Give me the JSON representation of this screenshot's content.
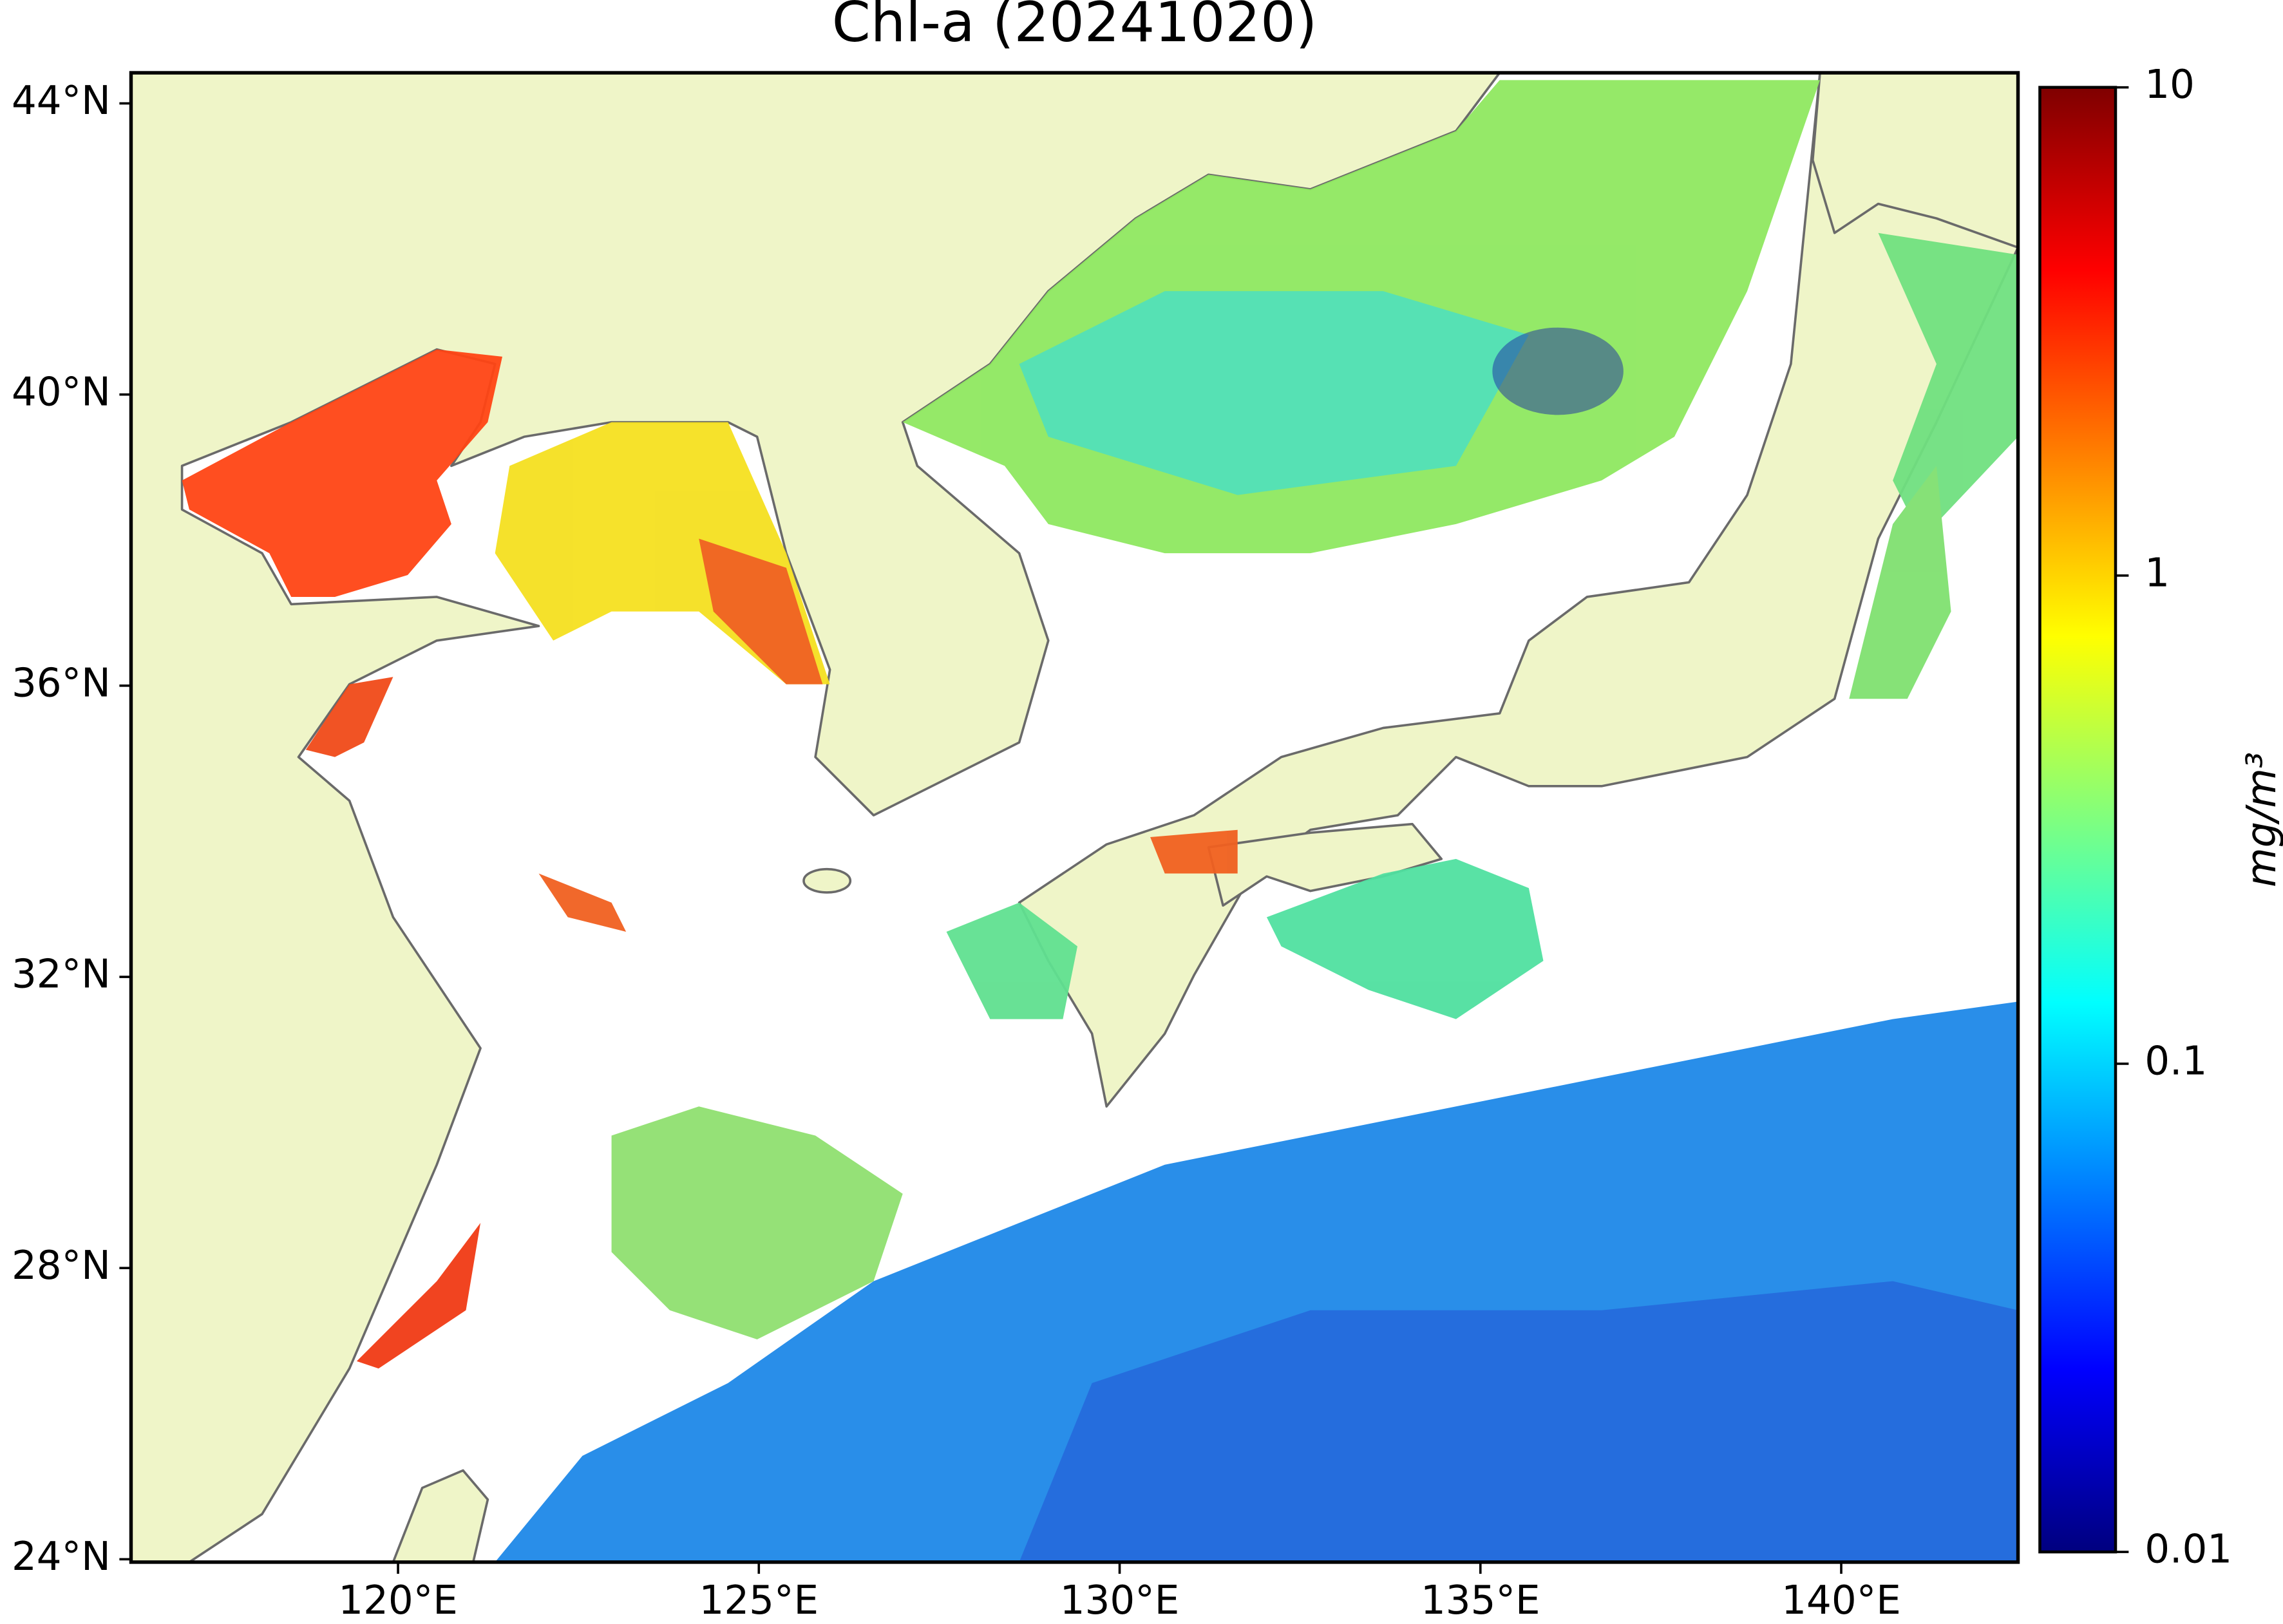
{
  "chart_data": {
    "type": "map",
    "title": "Chl-a (20241020)",
    "xlim": [
      116.3,
      142.45
    ],
    "ylim": [
      23.96,
      44.42
    ],
    "xticks": [
      {
        "value": 120,
        "label": "120°E"
      },
      {
        "value": 125,
        "label": "125°E"
      },
      {
        "value": 130,
        "label": "130°E"
      },
      {
        "value": 135,
        "label": "135°E"
      },
      {
        "value": 140,
        "label": "140°E"
      }
    ],
    "yticks": [
      {
        "value": 24,
        "label": "24°N"
      },
      {
        "value": 28,
        "label": "28°N"
      },
      {
        "value": 32,
        "label": "32°N"
      },
      {
        "value": 36,
        "label": "36°N"
      },
      {
        "value": 40,
        "label": "40°N"
      },
      {
        "value": 44,
        "label": "44°N"
      }
    ],
    "colorbar": {
      "label": "mg/m³",
      "scale": "log",
      "lim": [
        0.01,
        10
      ],
      "ticks": [
        0.01,
        0.1,
        1,
        10
      ],
      "colormap": [
        "#00007f",
        "#0000ff",
        "#007fff",
        "#00ffff",
        "#7fff7f",
        "#ffff00",
        "#ff7f00",
        "#ff0000",
        "#7f0000"
      ]
    }
  }
}
